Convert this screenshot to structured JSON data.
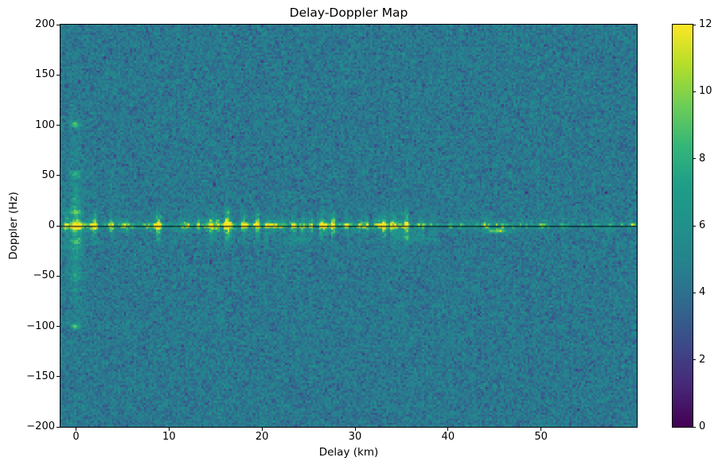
{
  "figure": {
    "background_color": "#ffffff",
    "frame_color": "#000000"
  },
  "chart_data": {
    "type": "heatmap",
    "title": "Delay-Doppler Map",
    "xlabel": "Delay (km)",
    "ylabel": "Doppler (Hz)",
    "x_range": [
      -1.67,
      60.3
    ],
    "y_range": [
      -200,
      200
    ],
    "x_ticks": [
      {
        "v": 0,
        "label": "0"
      },
      {
        "v": 10,
        "label": "10"
      },
      {
        "v": 20,
        "label": "20"
      },
      {
        "v": 30,
        "label": "30"
      },
      {
        "v": 40,
        "label": "40"
      },
      {
        "v": 50,
        "label": "50"
      }
    ],
    "y_ticks": [
      {
        "v": 200,
        "label": "200"
      },
      {
        "v": 150,
        "label": "150"
      },
      {
        "v": 100,
        "label": "100"
      },
      {
        "v": 50,
        "label": "50"
      },
      {
        "v": 0,
        "label": "0"
      },
      {
        "v": -50,
        "label": "−50"
      },
      {
        "v": -100,
        "label": "−100"
      },
      {
        "v": -150,
        "label": "−150"
      },
      {
        "v": -200,
        "label": "−200"
      }
    ],
    "colorbar": {
      "min": 0,
      "max": 12,
      "ticks": [
        {
          "v": 12,
          "label": "12"
        },
        {
          "v": 10,
          "label": "10"
        },
        {
          "v": 8,
          "label": "8"
        },
        {
          "v": 6,
          "label": "6"
        },
        {
          "v": 4,
          "label": "4"
        },
        {
          "v": 2,
          "label": "2"
        },
        {
          "v": 0,
          "label": "0"
        }
      ],
      "position": "right"
    },
    "colormap": {
      "name": "viridis",
      "stops": [
        [
          0.0,
          68,
          1,
          84
        ],
        [
          0.1,
          72,
          40,
          120
        ],
        [
          0.2,
          62,
          73,
          137
        ],
        [
          0.3,
          49,
          104,
          142
        ],
        [
          0.4,
          38,
          130,
          142
        ],
        [
          0.5,
          33,
          145,
          140
        ],
        [
          0.6,
          31,
          158,
          137
        ],
        [
          0.7,
          53,
          183,
          121
        ],
        [
          0.8,
          110,
          206,
          88
        ],
        [
          0.9,
          181,
          222,
          43
        ],
        [
          1.0,
          253,
          231,
          37
        ]
      ]
    },
    "grid_on": false,
    "legend": "none",
    "render_grid": {
      "cols": 290,
      "rows": 202,
      "seed": 1337
    },
    "noise_floor": {
      "mean": 4.35,
      "sd": 0.72,
      "clip": [
        0.0,
        12.0
      ]
    },
    "features": {
      "zero_doppler_band": {
        "doppler_hz": 0,
        "sigma_core_hz": 1.4,
        "sigma_mid_hz": 3.8,
        "mid_ratio": 0.5,
        "sigma_wide_hz": 9.5,
        "wide_ratio": 0.5,
        "segments": [
          {
            "d0": -1.67,
            "d1": 37.0,
            "amp": 5.2
          },
          {
            "d0": 37.0,
            "d1": 47.0,
            "amp": 2.4
          },
          {
            "d0": 47.0,
            "d1": 60.3,
            "amp": 1.7
          }
        ]
      },
      "direct_path_streak": {
        "delay_km": 0,
        "sigma_d_km": 0.4,
        "amp": 4.2,
        "tau_hz": 26,
        "amp2": 1.0,
        "tau2_hz": 85,
        "fuzz_amp": 0.8,
        "fuzz_sigma_d_km": 1.2,
        "fuzz_tau_hz": 30
      },
      "spots": [
        {
          "d": 0,
          "f": 100,
          "amp": 5.0,
          "sd": 0.35,
          "sf": 2.0
        },
        {
          "d": 0,
          "f": -100,
          "amp": 4.0,
          "sd": 0.35,
          "sf": 2.0
        },
        {
          "d": 0,
          "f": 50,
          "amp": 2.4,
          "sd": 0.35,
          "sf": 2.4
        },
        {
          "d": 0,
          "f": -50,
          "amp": 1.7,
          "sd": 0.35,
          "sf": 2.4
        },
        {
          "d": 45.3,
          "f": -5,
          "amp": 5.5,
          "sd": 0.6,
          "sf": 1.6
        },
        {
          "d": 36.2,
          "f": -12,
          "amp": 1.8,
          "sd": 1.4,
          "sf": 3.0
        },
        {
          "d": 24.0,
          "f": -14,
          "amp": 1.6,
          "sd": 1.0,
          "sf": 2.5
        },
        {
          "d": 59.9,
          "f": 1,
          "amp": 4.0,
          "sd": 0.3,
          "sf": 1.2
        }
      ],
      "zero_line": {
        "doppler_hz": 0,
        "color": "#06061a",
        "thickness_px": 1.3
      }
    }
  }
}
